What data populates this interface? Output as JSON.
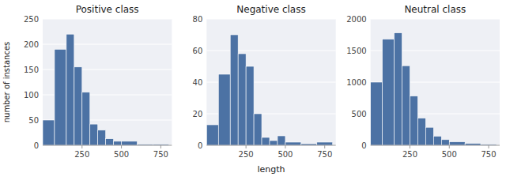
{
  "chart_data": [
    {
      "type": "histogram",
      "title": "Positive class",
      "ylabel": "number of instances",
      "bins": [
        0,
        75,
        150,
        200,
        250,
        300,
        350,
        400,
        450,
        500,
        600,
        700,
        800
      ],
      "values": [
        50,
        190,
        220,
        155,
        105,
        42,
        30,
        13,
        8,
        8,
        2,
        2
      ],
      "color": "#4C72A4",
      "xlim": [
        0,
        820
      ],
      "xticks": [
        250,
        500,
        750
      ],
      "ylim": [
        0,
        250
      ],
      "yticks": [
        0,
        50,
        100,
        150,
        200,
        250
      ],
      "grid": true
    },
    {
      "type": "histogram",
      "title": "Negative class",
      "xlabel": "length",
      "bins": [
        0,
        75,
        150,
        200,
        250,
        300,
        350,
        400,
        450,
        500,
        600,
        700,
        800
      ],
      "values": [
        13,
        45,
        70,
        58,
        50,
        20,
        5,
        3,
        6,
        2,
        1,
        2
      ],
      "color": "#4C72A4",
      "xlim": [
        0,
        820
      ],
      "xticks": [
        250,
        500,
        750
      ],
      "ylim": [
        0,
        80
      ],
      "yticks": [
        0,
        20,
        40,
        60,
        80
      ],
      "grid": true
    },
    {
      "type": "histogram",
      "title": "Neutral class",
      "bins": [
        0,
        75,
        150,
        200,
        250,
        300,
        350,
        400,
        450,
        500,
        600,
        700,
        800
      ],
      "values": [
        1000,
        1680,
        1780,
        1260,
        780,
        430,
        285,
        145,
        90,
        55,
        30,
        15
      ],
      "color": "#4C72A4",
      "xlim": [
        0,
        820
      ],
      "xticks": [
        250,
        500,
        750
      ],
      "ylim": [
        0,
        2000
      ],
      "yticks": [
        0,
        500,
        1000,
        1500,
        2000
      ],
      "grid": true
    }
  ]
}
